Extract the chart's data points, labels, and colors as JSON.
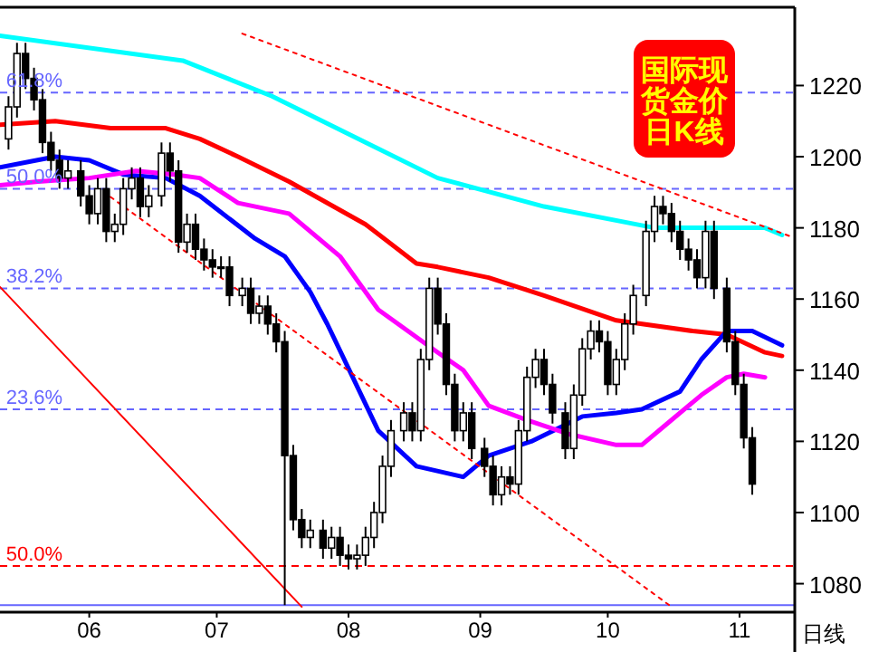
{
  "chart_data": {
    "type": "candlestick",
    "title": "国际现货金价日K线",
    "annotations": [
      "日线",
      {
        "text": "61.8%",
        "x": "--05-12",
        "y": 1218
      },
      {
        "text": "50.0%",
        "x": "--05-12",
        "y": 1191
      },
      {
        "text": "38.2%",
        "x": "--05-12",
        "y": 1163
      },
      {
        "text": "23.6%",
        "x": "--05-12",
        "y": 1129
      },
      {
        "text": "50.0%",
        "x": "--05-12",
        "y": 1085
      }
    ],
    "xlim": [
      "--05-11",
      "--11-14"
    ],
    "ylim": [
      1072,
      1242
    ],
    "xticks": [
      {
        "value": "--06-01",
        "label": "06"
      },
      {
        "value": "--07-01",
        "label": "07"
      },
      {
        "value": "--08-01",
        "label": "08"
      },
      {
        "value": "--09-01",
        "label": "09"
      },
      {
        "value": "--10-01",
        "label": "10"
      },
      {
        "value": "--11-01",
        "label": "11"
      }
    ],
    "yticks": [
      1080,
      1100,
      1120,
      1140,
      1160,
      1180,
      1200,
      1220
    ],
    "series": [
      {
        "type": "candlestick",
        "color": "#000000",
        "x": [
          "--05-13",
          "--05-15",
          "--05-17",
          "--05-19",
          "--05-21",
          "--05-23",
          "--05-25",
          "--05-27",
          "--05-30",
          "--06-01",
          "--06-03",
          "--06-05",
          "--06-07",
          "--06-09",
          "--06-11",
          "--06-13",
          "--06-15",
          "--06-18",
          "--06-20",
          "--06-22",
          "--06-24",
          "--06-26",
          "--06-28",
          "--06-30",
          "--07-02",
          "--07-04",
          "--07-07",
          "--07-09",
          "--07-11",
          "--07-13",
          "--07-15",
          "--07-17",
          "--07-19",
          "--07-21",
          "--07-23",
          "--07-26",
          "--07-28",
          "--07-30",
          "--08-01",
          "--08-03",
          "--08-05",
          "--08-07",
          "--08-09",
          "--08-11",
          "--08-14",
          "--08-16",
          "--08-18",
          "--08-20",
          "--08-22",
          "--08-24",
          "--08-26",
          "--08-28",
          "--08-30",
          "--09-02",
          "--09-04",
          "--09-06",
          "--09-08",
          "--09-10",
          "--09-12",
          "--09-14",
          "--09-16",
          "--09-18",
          "--09-21",
          "--09-23",
          "--09-25",
          "--09-27",
          "--09-29",
          "--10-01",
          "--10-03",
          "--10-05",
          "--10-07",
          "--10-10",
          "--10-12",
          "--10-14",
          "--10-16",
          "--10-18",
          "--10-20",
          "--10-22",
          "--10-24",
          "--10-26",
          "--10-29",
          "--10-31",
          "--11-02",
          "--11-04"
        ],
        "ohlc": [
          [
            1205,
            1217,
            1202,
            1214
          ],
          [
            1214,
            1232,
            1211,
            1229
          ],
          [
            1229,
            1232,
            1219,
            1222
          ],
          [
            1222,
            1225,
            1213,
            1216
          ],
          [
            1216,
            1219,
            1201,
            1204
          ],
          [
            1204,
            1207,
            1196,
            1199
          ],
          [
            1199,
            1202,
            1191,
            1194
          ],
          [
            1194,
            1199,
            1191,
            1196
          ],
          [
            1196,
            1199,
            1186,
            1189
          ],
          [
            1189,
            1192,
            1181,
            1184
          ],
          [
            1184,
            1194,
            1181,
            1191
          ],
          [
            1191,
            1194,
            1176,
            1179
          ],
          [
            1179,
            1184,
            1176,
            1181
          ],
          [
            1181,
            1194,
            1178,
            1191
          ],
          [
            1191,
            1197,
            1188,
            1194
          ],
          [
            1194,
            1197,
            1183,
            1186
          ],
          [
            1186,
            1192,
            1183,
            1189
          ],
          [
            1189,
            1204,
            1186,
            1201
          ],
          [
            1201,
            1204,
            1193,
            1196
          ],
          [
            1196,
            1199,
            1173,
            1176
          ],
          [
            1176,
            1184,
            1173,
            1181
          ],
          [
            1181,
            1184,
            1171,
            1174
          ],
          [
            1174,
            1177,
            1168,
            1171
          ],
          [
            1171,
            1174,
            1166,
            1169
          ],
          [
            1169,
            1172,
            1166,
            1169
          ],
          [
            1169,
            1172,
            1158,
            1161
          ],
          [
            1161,
            1166,
            1158,
            1163
          ],
          [
            1163,
            1166,
            1153,
            1156
          ],
          [
            1156,
            1161,
            1153,
            1158
          ],
          [
            1158,
            1161,
            1150,
            1153
          ],
          [
            1153,
            1156,
            1145,
            1148
          ],
          [
            1148,
            1151,
            1074,
            1116
          ],
          [
            1116,
            1119,
            1095,
            1098
          ],
          [
            1098,
            1101,
            1090,
            1093
          ],
          [
            1093,
            1098,
            1090,
            1095
          ],
          [
            1095,
            1098,
            1087,
            1090
          ],
          [
            1090,
            1096,
            1087,
            1093
          ],
          [
            1093,
            1096,
            1085,
            1088
          ],
          [
            1088,
            1091,
            1084,
            1087
          ],
          [
            1087,
            1091,
            1084,
            1088
          ],
          [
            1088,
            1096,
            1085,
            1093
          ],
          [
            1093,
            1103,
            1090,
            1100
          ],
          [
            1100,
            1116,
            1097,
            1113
          ],
          [
            1113,
            1126,
            1110,
            1123
          ],
          [
            1123,
            1131,
            1120,
            1128
          ],
          [
            1128,
            1131,
            1120,
            1123
          ],
          [
            1123,
            1146,
            1120,
            1143
          ],
          [
            1143,
            1166,
            1140,
            1163
          ],
          [
            1163,
            1166,
            1150,
            1153
          ],
          [
            1153,
            1156,
            1133,
            1136
          ],
          [
            1136,
            1139,
            1120,
            1123
          ],
          [
            1123,
            1131,
            1120,
            1128
          ],
          [
            1128,
            1131,
            1115,
            1118
          ],
          [
            1118,
            1121,
            1110,
            1113
          ],
          [
            1113,
            1116,
            1102,
            1105
          ],
          [
            1105,
            1113,
            1102,
            1110
          ],
          [
            1110,
            1113,
            1105,
            1108
          ],
          [
            1108,
            1126,
            1105,
            1123
          ],
          [
            1123,
            1141,
            1120,
            1138
          ],
          [
            1138,
            1146,
            1135,
            1143
          ],
          [
            1143,
            1146,
            1133,
            1136
          ],
          [
            1136,
            1139,
            1125,
            1128
          ],
          [
            1128,
            1131,
            1115,
            1118
          ],
          [
            1118,
            1136,
            1115,
            1133
          ],
          [
            1133,
            1149,
            1130,
            1146
          ],
          [
            1146,
            1154,
            1143,
            1151
          ],
          [
            1151,
            1154,
            1145,
            1148
          ],
          [
            1148,
            1151,
            1133,
            1136
          ],
          [
            1136,
            1146,
            1133,
            1143
          ],
          [
            1143,
            1156,
            1140,
            1153
          ],
          [
            1153,
            1164,
            1150,
            1161
          ],
          [
            1161,
            1182,
            1158,
            1179
          ],
          [
            1179,
            1189,
            1176,
            1186
          ],
          [
            1186,
            1189,
            1181,
            1184
          ],
          [
            1184,
            1187,
            1176,
            1179
          ],
          [
            1179,
            1182,
            1171,
            1174
          ],
          [
            1174,
            1177,
            1168,
            1171
          ],
          [
            1171,
            1174,
            1163,
            1166
          ],
          [
            1166,
            1182,
            1163,
            1179
          ],
          [
            1179,
            1182,
            1160,
            1163
          ],
          [
            1163,
            1166,
            1145,
            1148
          ],
          [
            1148,
            1151,
            1133,
            1136
          ],
          [
            1136,
            1139,
            1118,
            1121
          ],
          [
            1121,
            1124,
            1105,
            1108
          ]
        ]
      },
      {
        "type": "line",
        "color": "#00ffff",
        "x": [
          "--05-11",
          "--06-23",
          "--07-14",
          "--08-05",
          "--08-22",
          "--09-16",
          "--10-12",
          "--10-29",
          "--11-07",
          "--11-11"
        ],
        "values": [
          1234,
          1227,
          1217,
          1204,
          1194,
          1186,
          1180,
          1180,
          1180,
          1178
        ]
      },
      {
        "type": "line",
        "color": "#ff0000",
        "x": [
          "--05-11",
          "--05-24",
          "--06-06",
          "--06-19",
          "--06-27",
          "--07-06",
          "--07-18",
          "--08-05",
          "--08-17",
          "--08-22",
          "--09-03",
          "--09-16",
          "--10-03",
          "--10-21",
          "--10-29",
          "--11-07",
          "--11-11"
        ],
        "values": [
          1209,
          1210,
          1208,
          1208,
          1205,
          1200,
          1193,
          1181,
          1170,
          1169,
          1166,
          1161,
          1154,
          1151,
          1150,
          1145,
          1144
        ]
      },
      {
        "type": "line",
        "color": "#0000ff",
        "x": [
          "--05-11",
          "--05-24",
          "--06-01",
          "--06-09",
          "--06-19",
          "--06-27",
          "--07-10",
          "--07-17",
          "--07-23",
          "--07-27",
          "--08-02",
          "--08-08",
          "--08-17",
          "--08-28",
          "--09-03",
          "--09-13",
          "--09-25",
          "--10-03",
          "--10-09",
          "--10-18",
          "--10-23",
          "--10-29",
          "--11-04",
          "--11-11"
        ],
        "values": [
          1197,
          1200,
          1199,
          1195,
          1194,
          1189,
          1177,
          1172,
          1162,
          1153,
          1138,
          1123,
          1113,
          1110,
          1116,
          1120,
          1127,
          1128,
          1129,
          1134,
          1143,
          1151,
          1151,
          1147
        ]
      },
      {
        "type": "line",
        "color": "#ff00ff",
        "x": [
          "--05-11",
          "--05-20",
          "--06-01",
          "--06-12",
          "--06-21",
          "--06-27",
          "--07-06",
          "--07-18",
          "--07-30",
          "--08-08",
          "--08-22",
          "--08-28",
          "--09-03",
          "--09-12",
          "--09-22",
          "--10-03",
          "--10-09",
          "--10-15",
          "--10-23",
          "--10-29",
          "--11-02",
          "--11-07"
        ],
        "values": [
          1192,
          1193,
          1194,
          1196,
          1195,
          1194,
          1187,
          1184,
          1172,
          1157,
          1145,
          1140,
          1130,
          1126,
          1122,
          1119,
          1119,
          1125,
          1133,
          1138,
          1139,
          1138
        ]
      },
      {
        "type": "line",
        "color": "#ff0000",
        "line_style": "dotted",
        "x": [
          "--07-07",
          "--11-13"
        ],
        "values": [
          1234.6,
          1177.6
        ]
      },
      {
        "type": "line",
        "color": "#ff0000",
        "line_style": "dotted",
        "x": [
          "--06-06",
          "--10-16"
        ],
        "values": [
          1188.7,
          1073.5
        ]
      },
      {
        "type": "line",
        "color": "#ff0000",
        "line_style": "solid",
        "x": [
          "--05-11",
          "--07-21"
        ],
        "values": [
          1163.4,
          1073.5
        ]
      }
    ],
    "ref_lines": [
      {
        "axis": "y",
        "value": 1218,
        "color": "#6666ff",
        "line_style": "dashed"
      },
      {
        "axis": "y",
        "value": 1191,
        "color": "#6666ff",
        "line_style": "dashed"
      },
      {
        "axis": "y",
        "value": 1163,
        "color": "#6666ff",
        "line_style": "dashed"
      },
      {
        "axis": "y",
        "value": 1129,
        "color": "#6666ff",
        "line_style": "dashed"
      },
      {
        "axis": "y",
        "value": 1085,
        "color": "#ff0000",
        "line_style": "dashed"
      },
      {
        "axis": "y",
        "value": 1074,
        "color": "#6666ff",
        "line_style": "solid"
      }
    ]
  }
}
